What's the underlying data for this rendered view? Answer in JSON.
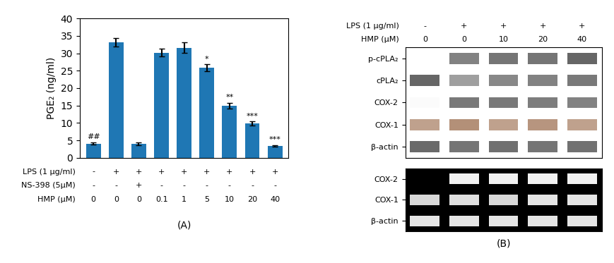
{
  "chart_data": [
    {
      "type": "bar",
      "ylabel": "PGE₂ (ng/ml)",
      "categories": [
        null,
        null,
        null,
        null,
        null,
        null,
        null,
        null,
        null
      ],
      "values": [
        4.1,
        33.2,
        4.1,
        30.2,
        31.6,
        25.8,
        15.0,
        9.8,
        3.4
      ],
      "errors": [
        0.3,
        1.2,
        0.4,
        1.2,
        1.5,
        1.0,
        0.8,
        0.6,
        0.3
      ],
      "significance": [
        "##",
        null,
        null,
        null,
        null,
        "*",
        "**",
        "***",
        "***"
      ],
      "category_rows": [
        {
          "name": "LPS (1 μg/ml)",
          "labels": [
            "-",
            "+",
            "+",
            "+",
            "+",
            "+",
            "+",
            "+",
            "+"
          ]
        },
        {
          "name": "NS-398 (5μM)",
          "labels": [
            "-",
            "-",
            "+",
            "-",
            "-",
            "-",
            "-",
            "-",
            "-"
          ]
        },
        {
          "name": "HMP (μM)",
          "labels": [
            "0",
            "0",
            "0",
            "0.1",
            "1",
            "5",
            "10",
            "20",
            "40"
          ]
        }
      ],
      "panel_label": "(A)",
      "ylim": [
        0,
        40
      ],
      "yticks": [
        0,
        5,
        10,
        15,
        20,
        25,
        30,
        35,
        40
      ],
      "tick_labels": "y"
    },
    {
      "type": "heatmap",
      "categories": [
        "p-cPLA₂",
        "cPLA₂",
        "COX-2",
        "COX-1",
        "β-actin"
      ],
      "column_rows": [
        {
          "name": "LPS (1 μg/ml)",
          "labels": [
            "-",
            "+",
            "+",
            "+",
            "+"
          ]
        },
        {
          "name": "HMP (μM)",
          "labels": [
            "0",
            "0",
            "10",
            "20",
            "40"
          ]
        }
      ],
      "cells": [
        [
          0.0,
          0.65,
          0.72,
          0.72,
          0.8
        ],
        [
          0.8,
          0.5,
          0.62,
          0.65,
          0.7
        ],
        [
          0.02,
          0.7,
          0.7,
          0.68,
          0.65
        ],
        [
          0.55,
          0.65,
          0.55,
          0.62,
          0.55
        ],
        [
          0.78,
          0.72,
          0.75,
          0.72,
          0.74
        ]
      ],
      "row_colors": [
        "#404040",
        "#404040",
        "#404040",
        "#8B5530",
        "#404040"
      ],
      "cell_range": [
        0,
        1
      ],
      "tick_labels": "y"
    },
    {
      "type": "heatmap",
      "categories": [
        "COX-2",
        "COX-1",
        "β-actin"
      ],
      "cells": [
        [
          0.0,
          0.95,
          0.95,
          0.95,
          0.95
        ],
        [
          0.85,
          0.88,
          0.85,
          0.9,
          0.9
        ],
        [
          0.9,
          0.9,
          0.9,
          0.9,
          0.9
        ]
      ],
      "color": "#ffffff",
      "cell_range": [
        0,
        1
      ],
      "tick_labels": "y",
      "panel_label": "(B)"
    }
  ]
}
